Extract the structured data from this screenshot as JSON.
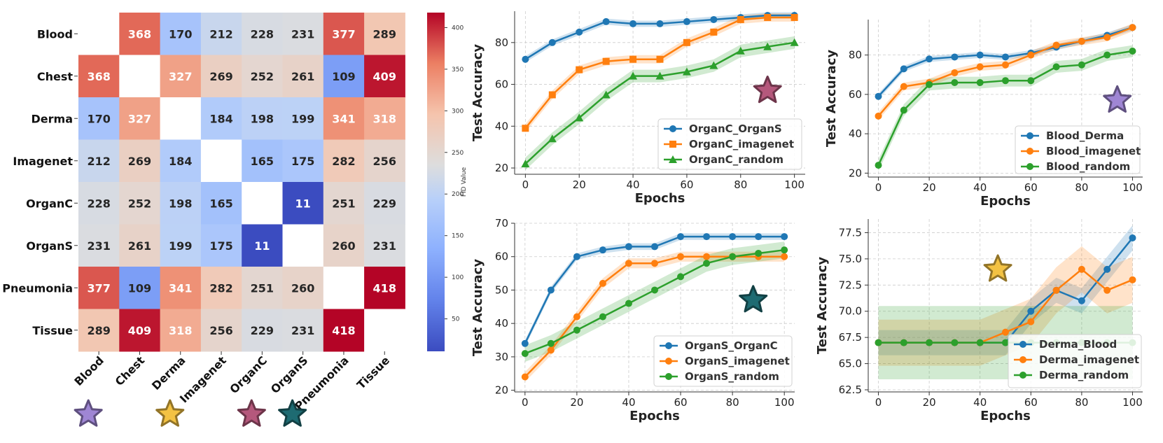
{
  "chart_data": [
    {
      "type": "heatmap",
      "id": "fid",
      "labels": [
        "Blood",
        "Chest",
        "Derma",
        "Imagenet",
        "OrganC",
        "OrganS",
        "Pneumonia",
        "Tissue"
      ],
      "matrix": [
        [
          null,
          368,
          170,
          212,
          228,
          231,
          377,
          289
        ],
        [
          368,
          null,
          327,
          269,
          252,
          261,
          109,
          409
        ],
        [
          170,
          327,
          null,
          184,
          198,
          199,
          341,
          318
        ],
        [
          212,
          269,
          184,
          null,
          165,
          175,
          282,
          256
        ],
        [
          228,
          252,
          198,
          165,
          null,
          11,
          251,
          229
        ],
        [
          231,
          261,
          199,
          175,
          11,
          null,
          260,
          231
        ],
        [
          377,
          109,
          341,
          282,
          251,
          260,
          null,
          418
        ],
        [
          289,
          409,
          318,
          256,
          229,
          231,
          418,
          null
        ]
      ],
      "colorbar": {
        "label": "FID Value",
        "min": 11,
        "max": 418,
        "ticks": [
          50,
          100,
          150,
          200,
          250,
          300,
          350,
          400
        ]
      },
      "stars": [
        {
          "under": "Blood",
          "color": "#9f86d4"
        },
        {
          "under": "Derma",
          "color": "#f3c243"
        },
        {
          "under": "OrganC",
          "color": "#b5587c"
        },
        {
          "under": "OrganS",
          "color": "#1e6b72"
        }
      ]
    },
    {
      "type": "line",
      "id": "organc",
      "xlabel": "Epochs",
      "ylabel": "Test Accuracy",
      "xlim": [
        -4,
        104
      ],
      "ylim": [
        17,
        95
      ],
      "xticks": [
        0,
        20,
        40,
        60,
        80,
        100
      ],
      "yticks": [
        20,
        40,
        60,
        80
      ],
      "x": [
        0,
        10,
        20,
        30,
        40,
        50,
        60,
        70,
        80,
        90,
        100
      ],
      "series": [
        {
          "name": "OrganC_OrganS",
          "color": "#1f77b4",
          "marker": "circle",
          "band": 1.5,
          "values": [
            72,
            80,
            85,
            90,
            89,
            89,
            90,
            91,
            92,
            93,
            93
          ]
        },
        {
          "name": "OrganC_imagenet",
          "color": "#ff7f0e",
          "marker": "square",
          "band": 2,
          "values": [
            39,
            55,
            67,
            71,
            72,
            72,
            80,
            85,
            91,
            92,
            92
          ]
        },
        {
          "name": "OrganC_random",
          "color": "#2ca02c",
          "marker": "triangle",
          "band": 3,
          "values": [
            22,
            34,
            44,
            55,
            64,
            64,
            66,
            69,
            76,
            78,
            80
          ]
        }
      ],
      "legend": "lower right",
      "star": {
        "x": 90,
        "y": 57,
        "color": "#b5587c"
      }
    },
    {
      "type": "line",
      "id": "blood",
      "xlabel": "Epochs",
      "ylabel": "Test Accuracy",
      "xlim": [
        -4,
        104
      ],
      "ylim": [
        18,
        98
      ],
      "xticks": [
        0,
        20,
        40,
        60,
        80,
        100
      ],
      "yticks": [
        20,
        40,
        60,
        80
      ],
      "x": [
        0,
        10,
        20,
        30,
        40,
        50,
        60,
        70,
        80,
        90,
        100
      ],
      "series": [
        {
          "name": "Blood_Derma",
          "color": "#1f77b4",
          "marker": "circle",
          "band": 1.5,
          "values": [
            59,
            73,
            78,
            79,
            80,
            79,
            81,
            84,
            87,
            90,
            94
          ]
        },
        {
          "name": "Blood_imagenet",
          "color": "#ff7f0e",
          "marker": "circle",
          "band": 2,
          "values": [
            49,
            64,
            66,
            71,
            74,
            75,
            80,
            85,
            87,
            89,
            94
          ]
        },
        {
          "name": "Blood_random",
          "color": "#2ca02c",
          "marker": "circle",
          "band": 3,
          "values": [
            24,
            52,
            65,
            66,
            66,
            67,
            67,
            74,
            75,
            80,
            82
          ]
        }
      ],
      "legend": "lower right",
      "star": {
        "x": 94,
        "y": 57,
        "color": "#9f86d4"
      }
    },
    {
      "type": "line",
      "id": "organs",
      "xlabel": "Epochs",
      "ylabel": "Test Accuracy",
      "xlim": [
        -4,
        104
      ],
      "ylim": [
        19.5,
        70
      ],
      "xticks": [
        0,
        20,
        40,
        60,
        80,
        100
      ],
      "yticks": [
        20,
        30,
        40,
        50,
        60,
        70
      ],
      "x": [
        0,
        10,
        20,
        30,
        40,
        50,
        60,
        70,
        80,
        90,
        100
      ],
      "series": [
        {
          "name": "OrganS_OrganC",
          "color": "#1f77b4",
          "marker": "circle",
          "band": 1,
          "values": [
            34,
            50,
            60,
            62,
            63,
            63,
            66,
            66,
            66,
            66,
            66
          ]
        },
        {
          "name": "OrganS_imagenet",
          "color": "#ff7f0e",
          "marker": "circle",
          "band": 1.5,
          "values": [
            24,
            32,
            42,
            52,
            58,
            58,
            60,
            60,
            60,
            60,
            60
          ]
        },
        {
          "name": "OrganS_random",
          "color": "#2ca02c",
          "marker": "circle",
          "band": 2.5,
          "values": [
            31,
            34,
            38,
            42,
            46,
            50,
            54,
            58,
            60,
            61,
            62
          ]
        }
      ],
      "legend": "lower right",
      "star": {
        "x": 88,
        "y": 47,
        "color": "#1e6b72"
      }
    },
    {
      "type": "line",
      "id": "derma",
      "xlabel": "Epochs",
      "ylabel": "Test Accuracy",
      "xlim": [
        -4,
        104
      ],
      "ylim": [
        62.3,
        78.8
      ],
      "xticks": [
        0,
        20,
        40,
        60,
        80,
        100
      ],
      "yticks": [
        62.5,
        65.0,
        67.5,
        70.0,
        72.5,
        75.0,
        77.5
      ],
      "x": [
        0,
        10,
        20,
        30,
        40,
        50,
        60,
        70,
        80,
        90,
        100
      ],
      "series": [
        {
          "name": "Derma_Blood",
          "color": "#1f77b4",
          "marker": "circle",
          "band": 1.2,
          "values": [
            67,
            67,
            67,
            67,
            67,
            67,
            70,
            72,
            71,
            74,
            77
          ]
        },
        {
          "name": "Derma_imagenet",
          "color": "#ff7f0e",
          "marker": "circle",
          "band": 2.2,
          "values": [
            67,
            67,
            67,
            67,
            67,
            68,
            69,
            72,
            74,
            72,
            73
          ]
        },
        {
          "name": "Derma_random",
          "color": "#2ca02c",
          "marker": "circle",
          "band": 3.5,
          "values": [
            67,
            67,
            67,
            67,
            67,
            67,
            67,
            67,
            67,
            67,
            67
          ]
        }
      ],
      "legend": "lower right",
      "star": {
        "x": 47,
        "y": 74,
        "color": "#f3c243"
      }
    }
  ]
}
